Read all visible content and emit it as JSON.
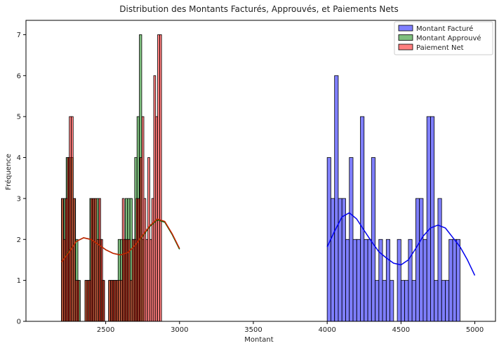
{
  "chart_data": {
    "type": "histogram",
    "title": "Distribution des Montants Facturés, Approuvés, et Paiements Nets",
    "xlabel": "Montant",
    "ylabel": "Fréquence",
    "xlim": [
      1960,
      5140
    ],
    "ylim": [
      0,
      7.35
    ],
    "xticks": [
      2500,
      3000,
      3500,
      4000,
      4500,
      5000
    ],
    "yticks": [
      0,
      1,
      2,
      3,
      4,
      5,
      6,
      7
    ],
    "legend_position": "top-right",
    "series": [
      {
        "name": "Montant Facturé",
        "color": "#0000ff",
        "line_color": "#0000ee",
        "bin_start": 4000,
        "bin_width": 25,
        "counts": [
          4,
          3,
          6,
          3,
          3,
          2,
          4,
          2,
          2,
          5,
          2,
          2,
          4,
          1,
          2,
          1,
          2,
          1,
          0,
          2,
          1,
          1,
          2,
          1,
          3,
          3,
          2,
          5,
          5,
          1,
          3,
          1,
          1,
          2,
          2,
          2
        ],
        "kde": [
          [
            4000,
            1.82
          ],
          [
            4050,
            2.2
          ],
          [
            4100,
            2.55
          ],
          [
            4150,
            2.65
          ],
          [
            4200,
            2.5
          ],
          [
            4250,
            2.22
          ],
          [
            4300,
            1.95
          ],
          [
            4350,
            1.7
          ],
          [
            4400,
            1.55
          ],
          [
            4450,
            1.42
          ],
          [
            4500,
            1.38
          ],
          [
            4550,
            1.5
          ],
          [
            4600,
            1.78
          ],
          [
            4650,
            2.08
          ],
          [
            4700,
            2.28
          ],
          [
            4750,
            2.35
          ],
          [
            4800,
            2.28
          ],
          [
            4850,
            2.05
          ],
          [
            4900,
            1.82
          ],
          [
            4950,
            1.5
          ],
          [
            5000,
            1.12
          ]
        ]
      },
      {
        "name": "Montant Approuvé",
        "color": "#008000",
        "line_color": "#006400",
        "bin_start": 2200,
        "bin_width": 16,
        "counts": [
          3,
          3,
          4,
          4,
          4,
          3,
          2,
          1,
          0,
          0,
          1,
          1,
          3,
          3,
          3,
          3,
          2,
          1,
          0,
          0,
          1,
          1,
          1,
          1,
          2,
          2,
          2,
          3,
          3,
          3,
          2,
          4,
          5,
          7,
          2
        ],
        "kde": [
          [
            2200,
            1.45
          ],
          [
            2250,
            1.7
          ],
          [
            2300,
            1.95
          ],
          [
            2350,
            2.04
          ],
          [
            2400,
            2.0
          ],
          [
            2450,
            1.88
          ],
          [
            2500,
            1.75
          ],
          [
            2550,
            1.66
          ],
          [
            2600,
            1.62
          ],
          [
            2650,
            1.68
          ],
          [
            2700,
            1.86
          ],
          [
            2750,
            2.08
          ],
          [
            2800,
            2.32
          ],
          [
            2850,
            2.48
          ],
          [
            2900,
            2.42
          ],
          [
            2950,
            2.12
          ],
          [
            3000,
            1.76
          ]
        ]
      },
      {
        "name": "Paiement Net",
        "color": "#ff0000",
        "line_color": "#cc2200",
        "bin_start": 2200,
        "bin_width": 13.3,
        "counts": [
          3,
          2,
          3,
          4,
          5,
          5,
          3,
          1,
          1,
          0,
          0,
          0,
          1,
          1,
          1,
          3,
          3,
          3,
          2,
          3,
          2,
          1,
          0,
          0,
          1,
          1,
          1,
          1,
          1,
          1,
          1,
          3,
          2,
          2,
          2,
          1,
          2,
          2,
          3,
          3,
          4,
          5,
          3,
          2,
          4,
          2,
          3,
          6,
          5,
          7,
          7
        ],
        "kde": [
          [
            2200,
            1.45
          ],
          [
            2250,
            1.68
          ],
          [
            2300,
            1.95
          ],
          [
            2350,
            2.04
          ],
          [
            2400,
            2.0
          ],
          [
            2450,
            1.88
          ],
          [
            2500,
            1.75
          ],
          [
            2550,
            1.66
          ],
          [
            2600,
            1.62
          ],
          [
            2650,
            1.68
          ],
          [
            2700,
            1.86
          ],
          [
            2750,
            2.1
          ],
          [
            2800,
            2.34
          ],
          [
            2850,
            2.5
          ],
          [
            2900,
            2.44
          ],
          [
            2950,
            2.14
          ],
          [
            3000,
            1.78
          ]
        ]
      }
    ]
  }
}
